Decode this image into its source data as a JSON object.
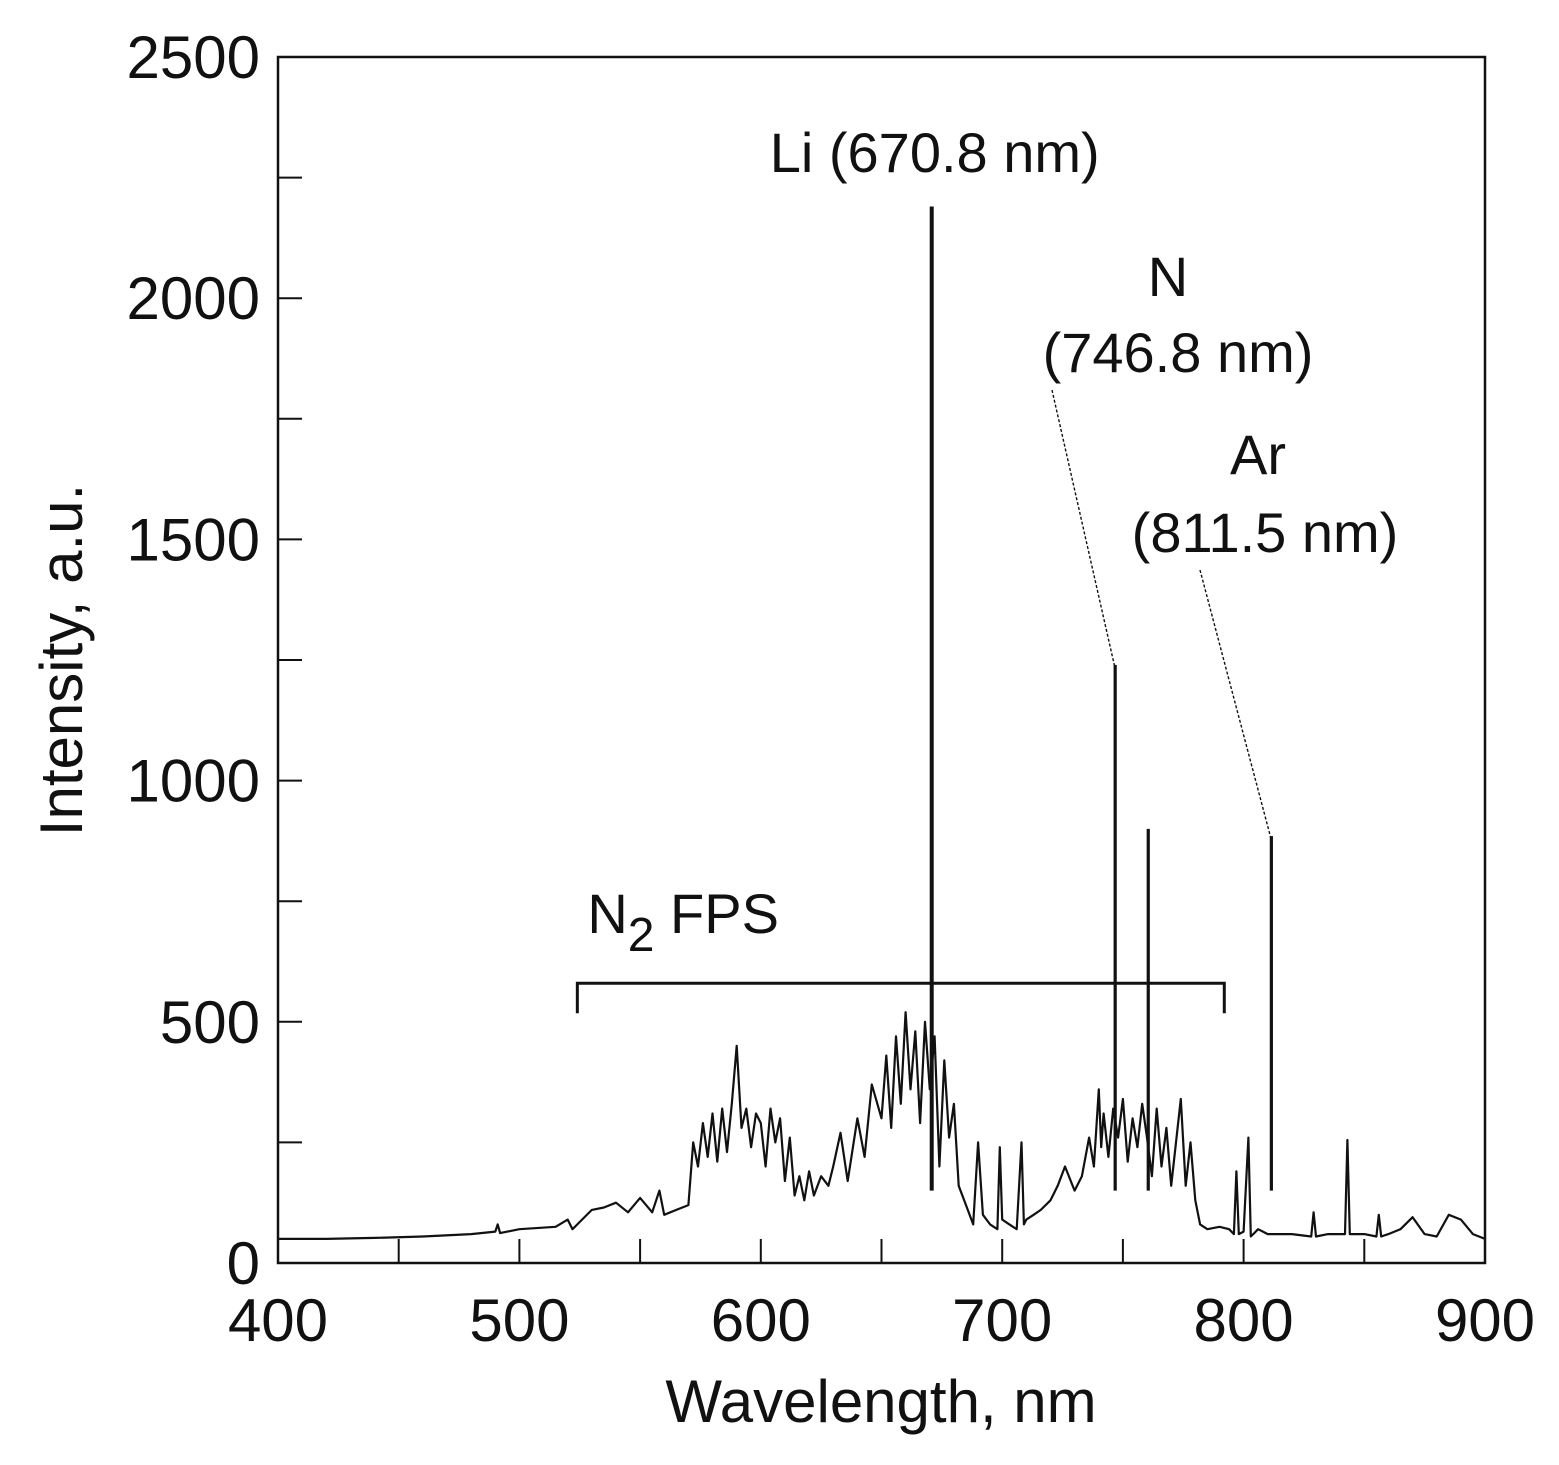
{
  "chart_data": {
    "type": "line",
    "xlabel": "Wavelength, nm",
    "ylabel": "Intensity, a.u.",
    "xlim": [
      400,
      900
    ],
    "ylim": [
      0,
      2500
    ],
    "x_ticks": [
      400,
      500,
      600,
      700,
      800,
      900
    ],
    "y_ticks": [
      0,
      500,
      1000,
      1500,
      2000,
      2500
    ],
    "x_minor_ticks": [
      450,
      550,
      650,
      750,
      850
    ],
    "y_minor_ticks": [
      250,
      750,
      1250,
      1750,
      2250
    ],
    "grid": false,
    "series": [
      {
        "x": [
          400,
          420,
          440,
          460,
          480,
          490,
          491,
          492,
          500,
          515,
          520,
          522,
          524,
          530,
          535,
          540,
          545,
          550,
          555,
          558,
          560,
          565,
          570,
          572,
          574,
          576,
          578,
          580,
          582,
          584,
          586,
          588,
          590,
          592,
          594,
          596,
          598,
          600,
          602,
          604,
          606,
          608,
          610,
          612,
          614,
          616,
          618,
          620,
          622,
          625,
          628,
          630,
          633,
          636,
          640,
          643,
          646,
          650,
          652,
          654,
          656,
          658,
          660,
          662,
          664,
          666,
          668,
          670,
          672,
          674,
          676,
          678,
          680,
          682,
          685,
          688,
          690,
          692,
          695,
          698,
          699,
          700,
          703,
          706,
          708,
          709,
          710,
          713,
          716,
          720,
          723,
          726,
          730,
          733,
          736,
          738,
          740,
          741,
          742,
          744,
          746,
          748,
          750,
          752,
          754,
          756,
          758,
          760,
          762,
          764,
          766,
          768,
          770,
          772,
          774,
          776,
          778,
          780,
          782,
          785,
          790,
          794,
          796,
          797,
          798,
          800,
          802,
          803,
          804,
          806,
          808,
          810,
          812,
          814,
          820,
          828,
          829,
          830,
          835,
          840,
          842,
          843,
          844,
          846,
          850,
          855,
          856,
          857,
          860,
          865,
          870,
          875,
          880,
          885,
          890,
          895,
          900
        ],
        "y": [
          50,
          50,
          52,
          55,
          60,
          65,
          80,
          62,
          70,
          75,
          90,
          70,
          80,
          110,
          115,
          125,
          105,
          135,
          105,
          150,
          100,
          110,
          120,
          250,
          200,
          290,
          220,
          310,
          210,
          320,
          230,
          330,
          450,
          280,
          320,
          240,
          310,
          290,
          200,
          320,
          250,
          300,
          170,
          260,
          140,
          180,
          130,
          190,
          140,
          180,
          160,
          200,
          270,
          170,
          300,
          220,
          370,
          300,
          430,
          280,
          470,
          330,
          520,
          360,
          480,
          290,
          500,
          360,
          470,
          200,
          420,
          260,
          330,
          160,
          120,
          80,
          250,
          100,
          80,
          70,
          240,
          90,
          80,
          70,
          250,
          80,
          90,
          100,
          110,
          130,
          160,
          200,
          150,
          180,
          260,
          200,
          360,
          240,
          310,
          220,
          320,
          260,
          340,
          210,
          300,
          240,
          330,
          260,
          180,
          320,
          200,
          280,
          160,
          250,
          340,
          160,
          250,
          130,
          80,
          70,
          75,
          70,
          60,
          190,
          60,
          65,
          260,
          55,
          60,
          70,
          65,
          60,
          60,
          60,
          60,
          55,
          105,
          55,
          60,
          60,
          60,
          255,
          60,
          60,
          60,
          55,
          100,
          55,
          60,
          70,
          95,
          60,
          55,
          100,
          90,
          60,
          50
        ],
        "lines": [
          {
            "x": 670.8,
            "y": 2190
          },
          {
            "x": 746.8,
            "y": 1240
          },
          {
            "x": 760.5,
            "y": 900
          },
          {
            "x": 811.5,
            "y": 885
          }
        ]
      }
    ],
    "annotations": [
      {
        "text": "Li (670.8 nm)",
        "x": 670.8,
        "y": 2190
      },
      {
        "text": "N",
        "line2": "(746.8 nm)",
        "x": 746.8,
        "y": 1240
      },
      {
        "text": "Ar",
        "line2": "(811.5 nm)",
        "x": 811.5,
        "y": 885
      }
    ],
    "band_label": {
      "main": "N",
      "sub": "2",
      "rest": " FPS",
      "x_start": 524,
      "x_end": 792,
      "y": 580
    }
  }
}
